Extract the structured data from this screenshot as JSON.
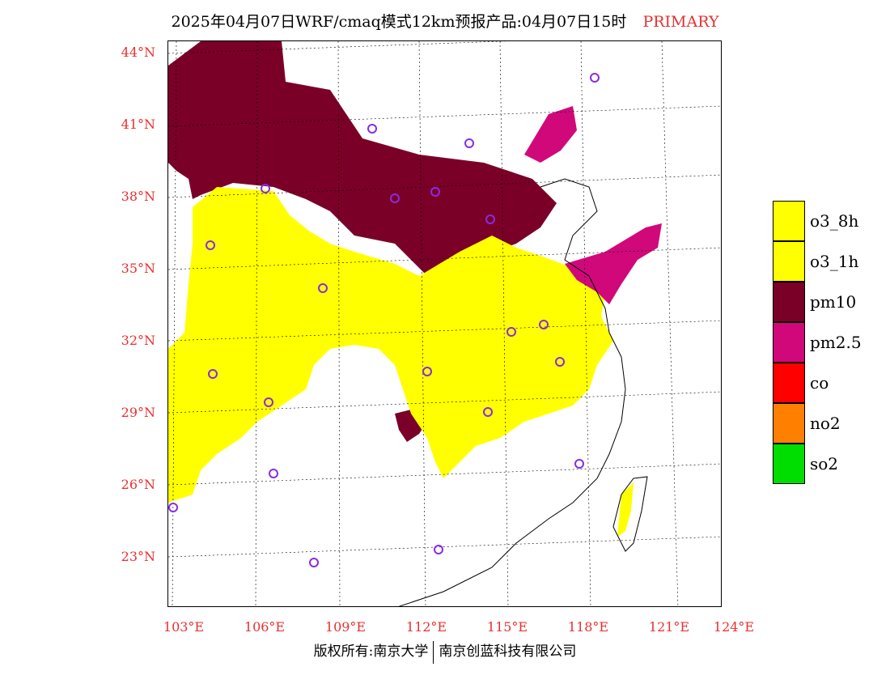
{
  "title": {
    "main": "2025年04月07日WRF/cmaq模式12km预报产品:04月07日15时",
    "tag": "PRIMARY",
    "tag_color": "#e83030"
  },
  "axis_color": "#e83030",
  "lat_labels": [
    "44°N",
    "41°N",
    "38°N",
    "35°N",
    "32°N",
    "29°N",
    "26°N",
    "23°N"
  ],
  "lon_labels": [
    "103°E",
    "106°E",
    "109°E",
    "112°E",
    "115°E",
    "118°E",
    "121°E",
    "124°E"
  ],
  "legend": [
    {
      "label": "o3_8h",
      "color": "#ffff00"
    },
    {
      "label": "o3_1h",
      "color": "#ffff00"
    },
    {
      "label": "pm10",
      "color": "#7a0028"
    },
    {
      "label": "pm2.5",
      "color": "#d0087a"
    },
    {
      "label": "co",
      "color": "#ff0000"
    },
    {
      "label": "no2",
      "color": "#ff7f00"
    },
    {
      "label": "so2",
      "color": "#00dd00"
    }
  ],
  "footer": {
    "left": "版权所有:南京大学",
    "right": "南京创蓝科技有限公司"
  },
  "map": {
    "region": "China east (102°E–124°E, 21°N–45°N)",
    "primary_pollutant_zones": [
      "pm10",
      "o3_8h",
      "pm2.5"
    ],
    "station_marker_color": "#8a2be2"
  }
}
